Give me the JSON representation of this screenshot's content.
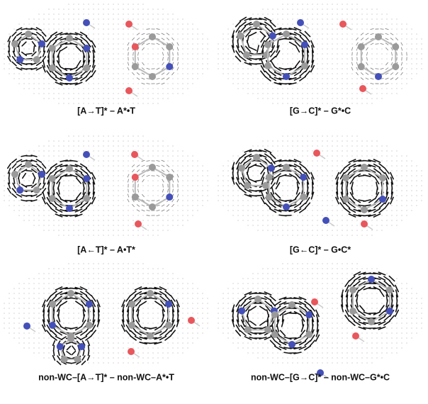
{
  "panels": [
    {
      "caption": "[A→T]* – A*•T"
    },
    {
      "caption": "[G→C]* – G*•C"
    },
    {
      "caption": "[A←T]* – A•T*"
    },
    {
      "caption": "[G←C]* – G•C*"
    },
    {
      "caption": "non-WC–[A→T]* – non-WC–A*•T"
    },
    {
      "caption": "non-WC–[G→C]* – non-WC–G*•C"
    }
  ]
}
